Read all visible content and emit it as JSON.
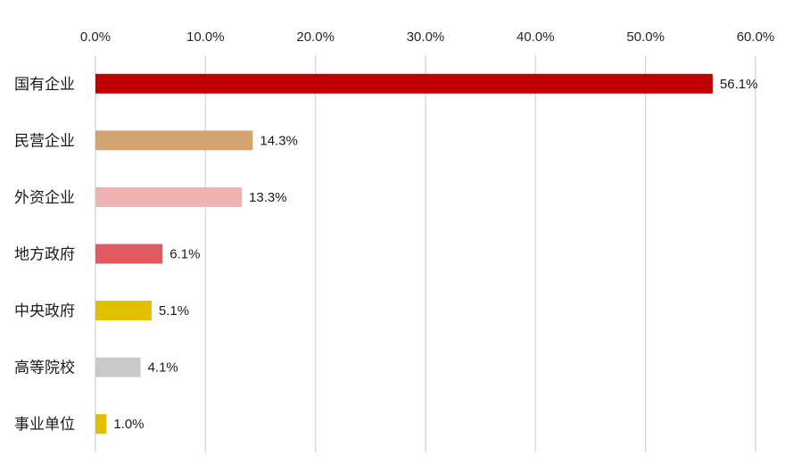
{
  "chart_data": {
    "type": "bar",
    "orientation": "horizontal",
    "title": "",
    "xlabel": "",
    "ylabel": "",
    "xlim": [
      0,
      60
    ],
    "x_tick_values": [
      0,
      10,
      20,
      30,
      40,
      50,
      60
    ],
    "x_tick_labels": [
      "0.0%",
      "10.0%",
      "20.0%",
      "30.0%",
      "40.0%",
      "50.0%",
      "60.0%"
    ],
    "axis_position": "top",
    "grid": true,
    "legend": "none",
    "categories": [
      "国有企业",
      "民营企业",
      "外资企业",
      "地方政府",
      "中央政府",
      "高等院校",
      "事业单位"
    ],
    "values": [
      56.1,
      14.3,
      13.3,
      6.1,
      5.1,
      4.1,
      1.0
    ],
    "data_labels": [
      "56.1%",
      "14.3%",
      "13.3%",
      "6.1%",
      "5.1%",
      "4.1%",
      "1.0%"
    ],
    "colors": [
      "#C00000",
      "#D4A46E",
      "#EEB4B4",
      "#E05A62",
      "#E2C000",
      "#C9C9C9",
      "#E2C000"
    ]
  }
}
